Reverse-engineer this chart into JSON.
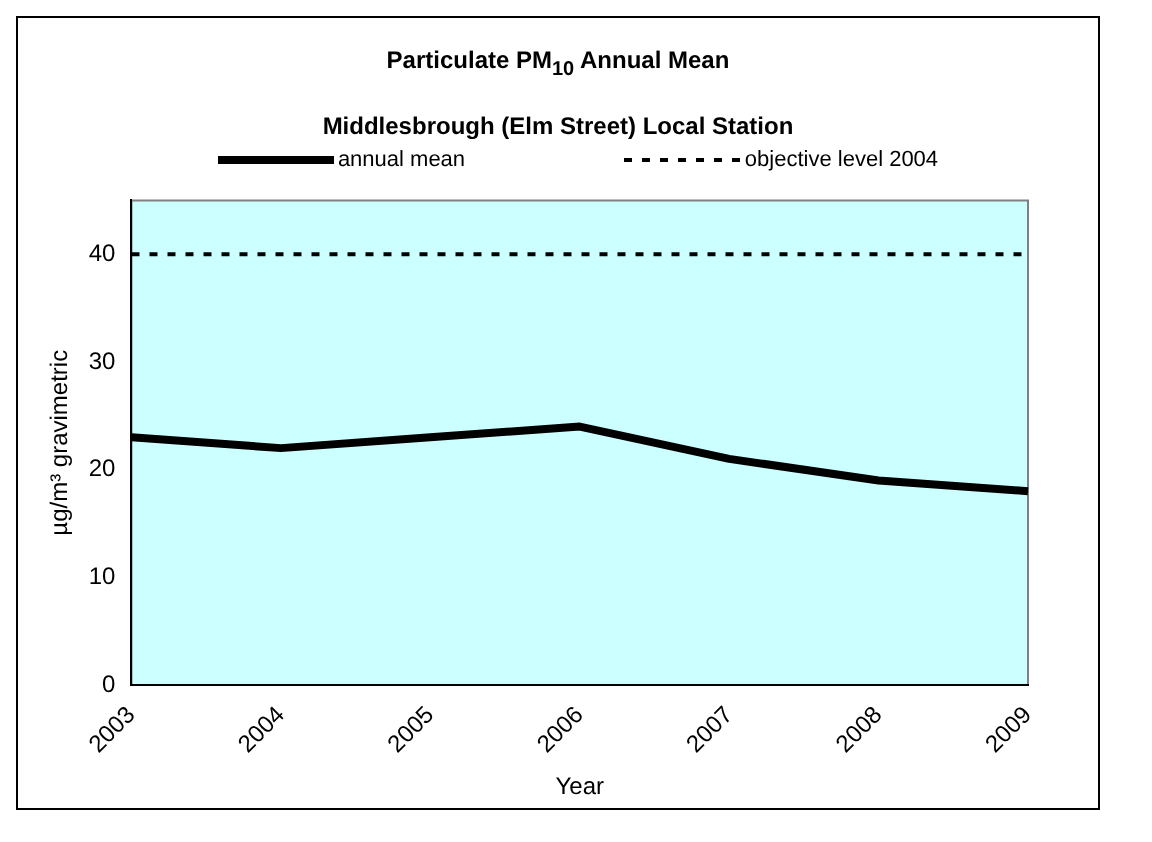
{
  "chart_data": {
    "type": "line",
    "title": "Particulate PM$_{10}$ Annual Mean",
    "subtitle": "Middlesbrough (Elm Street) Local Station",
    "xlabel": "Year",
    "ylabel": "µg/m³ gravimetric",
    "categories": [
      "2003",
      "2004",
      "2005",
      "2006",
      "2007",
      "2008",
      "2009"
    ],
    "series": [
      {
        "name": "annual mean",
        "color": "#000000",
        "values": [
          23,
          22,
          23,
          24,
          21,
          19,
          18
        ]
      },
      {
        "name": "objective level 2004",
        "color": "#000000",
        "line_style": "dashed",
        "values": [
          40,
          40,
          40,
          40,
          40,
          40,
          40
        ]
      }
    ],
    "ylim": [
      0,
      45
    ],
    "yticks": [
      0,
      10,
      20,
      30,
      40
    ],
    "grid": false,
    "legend": "top",
    "marker": "none"
  }
}
